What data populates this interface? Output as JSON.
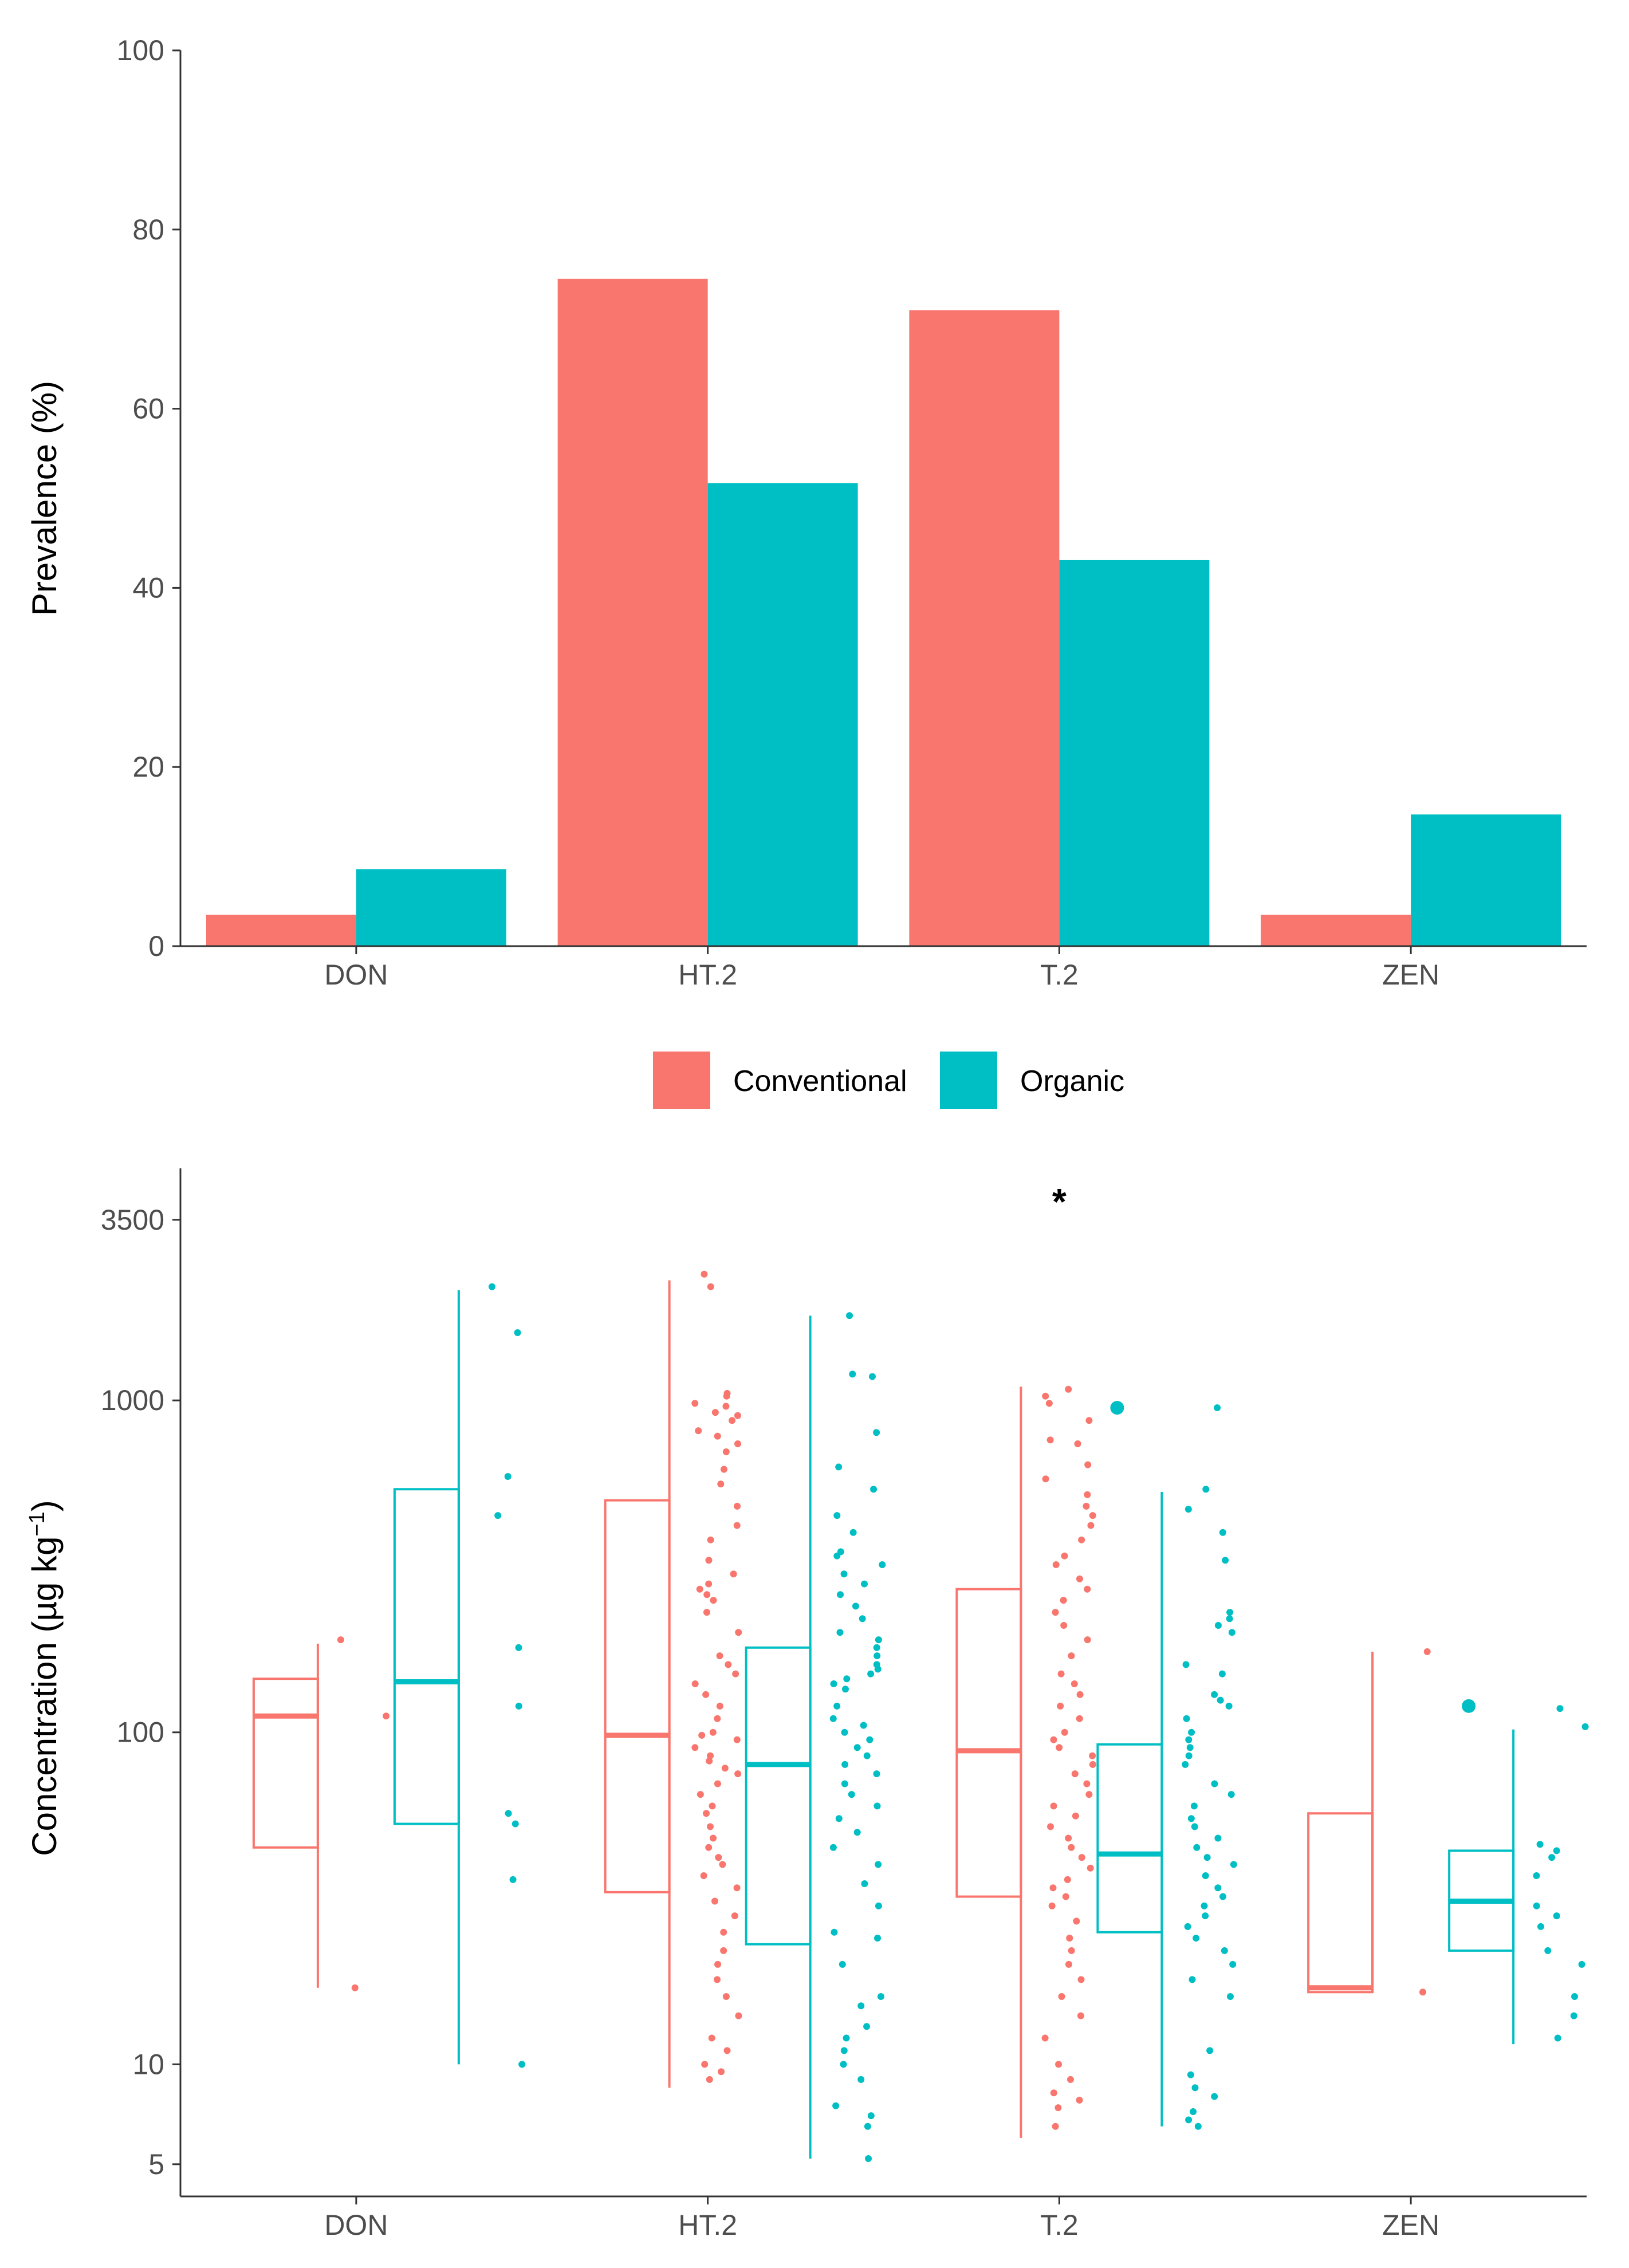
{
  "chart_data": [
    {
      "type": "bar",
      "ylabel": "Prevalence (%)",
      "xlabel": "",
      "ylim": [
        0,
        100
      ],
      "yticks": [
        0,
        20,
        40,
        60,
        80,
        100
      ],
      "categories": [
        "DON",
        "HT.2",
        "T.2",
        "ZEN"
      ],
      "series": [
        {
          "name": "Conventional",
          "color": "#F8766D",
          "values": [
            3.5,
            74.5,
            71.0,
            3.5
          ]
        },
        {
          "name": "Organic",
          "color": "#00BFC4",
          "values": [
            8.6,
            51.7,
            43.1,
            14.7
          ]
        }
      ]
    },
    {
      "type": "box",
      "ylabel": "Concentration (µg kg",
      "ylabel_sup": "−1",
      "ylabel_close": ")",
      "y_scale": "log10",
      "ylim": [
        4,
        5000
      ],
      "yticks": [
        5,
        10,
        100,
        1000,
        3500
      ],
      "ytick_labels": [
        "5",
        "10",
        "100",
        "1000",
        "3500"
      ],
      "categories": [
        "DON",
        "HT.2",
        "T.2",
        "ZEN"
      ],
      "annotation": {
        "text": "*",
        "category": "T.2"
      },
      "series": [
        {
          "name": "Conventional",
          "color": "#F8766D",
          "boxes": [
            {
              "min": 17,
              "q1": 45,
              "median": 112,
              "q3": 145,
              "max": 185,
              "outliers": []
            },
            {
              "min": 8.5,
              "q1": 33,
              "median": 98,
              "q3": 500,
              "max": 2300,
              "outliers": []
            },
            {
              "min": 6,
              "q1": 32,
              "median": 88,
              "q3": 270,
              "max": 1100,
              "outliers": []
            },
            {
              "min": 16.5,
              "q1": 16.5,
              "median": 17,
              "q3": 57,
              "max": 175,
              "outliers": []
            }
          ],
          "points": [
            [
              190,
              112,
              17
            ],
            [
              2400,
              2200,
              1050,
              1030,
              980,
              960,
              920,
              900,
              870,
              810,
              780,
              740,
              700,
              620,
              560,
              480,
              420,
              380,
              330,
              300,
              280,
              270,
              260,
              250,
              230,
              200,
              170,
              160,
              150,
              140,
              130,
              120,
              110,
              100,
              98,
              95,
              90,
              85,
              82,
              78,
              75,
              70,
              65,
              60,
              57,
              52,
              48,
              45,
              42,
              40,
              37,
              34,
              31,
              28,
              25,
              22,
              20,
              18,
              16,
              14,
              12,
              11,
              10,
              9.5,
              9
            ],
            [
              1080,
              1030,
              980,
              870,
              760,
              740,
              640,
              580,
              520,
              480,
              450,
              420,
              380,
              340,
              320,
              290,
              270,
              250,
              230,
              210,
              190,
              170,
              150,
              140,
              130,
              120,
              110,
              100,
              95,
              90,
              85,
              80,
              75,
              70,
              65,
              60,
              56,
              52,
              48,
              45,
              42,
              39,
              36,
              34,
              32,
              30,
              27,
              24,
              22,
              20,
              18,
              16,
              14,
              12,
              10,
              9,
              8.2,
              7.8,
              7.4,
              6.5
            ],
            [
              175,
              16.5
            ]
          ]
        },
        {
          "name": "Organic",
          "color": "#00BFC4",
          "boxes": [
            {
              "min": 10,
              "q1": 53,
              "median": 142,
              "q3": 540,
              "max": 2150,
              "outliers": []
            },
            {
              "min": 5.2,
              "q1": 23,
              "median": 80,
              "q3": 180,
              "max": 1800,
              "outliers": []
            },
            {
              "min": 6.5,
              "q1": 25,
              "median": 43,
              "q3": 92,
              "max": 530,
              "outliers": [
                950
              ]
            },
            {
              "min": 11.5,
              "q1": 22,
              "median": 31,
              "q3": 44,
              "max": 102,
              "outliers": [
                120
              ]
            }
          ],
          "points": [
            [
              2200,
              1600,
              590,
              450,
              180,
              120,
              57,
              53,
              36,
              10
            ],
            [
              1800,
              1200,
              1180,
              800,
              630,
              540,
              450,
              400,
              350,
              340,
              320,
              300,
              280,
              260,
              240,
              220,
              200,
              190,
              180,
              170,
              160,
              155,
              150,
              145,
              140,
              135,
              120,
              110,
              105,
              100,
              95,
              90,
              85,
              80,
              75,
              70,
              65,
              60,
              55,
              50,
              45,
              40,
              35,
              30,
              25,
              24,
              20,
              16,
              15,
              13,
              12,
              11,
              10,
              9,
              7.5,
              7,
              6.5,
              5.2
            ],
            [
              950,
              540,
              470,
              400,
              330,
              230,
              220,
              210,
              200,
              160,
              150,
              130,
              125,
              120,
              110,
              100,
              95,
              90,
              85,
              80,
              70,
              65,
              60,
              55,
              52,
              48,
              45,
              42,
              40,
              37,
              34,
              32,
              30,
              28,
              26,
              24,
              22,
              20,
              18,
              16,
              11,
              9.3,
              8.5,
              8,
              7.2,
              6.8,
              6.5
            ],
            [
              118,
              104,
              46,
              44,
              42,
              37,
              30,
              28,
              26,
              22,
              20,
              16,
              14,
              12
            ]
          ]
        }
      ]
    }
  ],
  "legend": {
    "items": [
      {
        "label": "Conventional",
        "color": "#F8766D"
      },
      {
        "label": "Organic",
        "color": "#00BFC4"
      }
    ]
  }
}
